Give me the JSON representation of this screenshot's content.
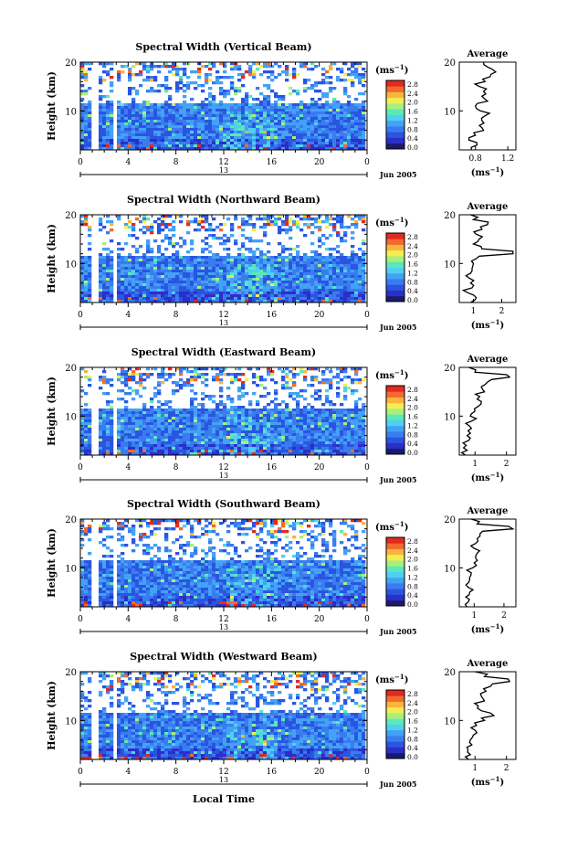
{
  "figure": {
    "xlabel": "Local Time",
    "xticks": [
      "0",
      "4",
      "8",
      "12",
      "16",
      "20",
      "0"
    ],
    "day_label": "13",
    "month_label": "Jun 2005",
    "ylabel": "Height (km)",
    "yticks": [
      "20",
      "10"
    ],
    "colorbar_unit": "(ms",
    "colorbar_exp": "−1",
    "colorbar_ticks": [
      "2.8",
      "2.4",
      "2.0",
      "1.6",
      "1.2",
      "0.8",
      "0.4",
      "0.0"
    ],
    "avg_title": "Average",
    "avg_unit": "(ms",
    "avg_exp": "−1",
    "colors": [
      "#1a1a6e",
      "#2c2ec8",
      "#2a55e0",
      "#3a7cf0",
      "#43a2f5",
      "#4fd0f0",
      "#5ce8b8",
      "#a8f07c",
      "#f2ee52",
      "#f8b43c",
      "#f26a2e",
      "#e22a1e"
    ]
  },
  "chart_data": [
    {
      "type": "heatmap",
      "title": "Spectral Width (Vertical Beam)",
      "x_range_hours": [
        0,
        24
      ],
      "y_range_km": [
        2,
        20
      ],
      "color_range": [
        0.0,
        2.8
      ],
      "colorbar_unit": "ms^-1",
      "avg_profile": {
        "xticks": [
          "0.8",
          "1.2"
        ],
        "xlim": [
          0.6,
          1.3
        ],
        "height_km": [
          2,
          3,
          4,
          5,
          6,
          7,
          8,
          9,
          10,
          11,
          12,
          13,
          14,
          15,
          16,
          17,
          18,
          19,
          20
        ],
        "value": [
          0.75,
          0.82,
          0.72,
          0.8,
          0.9,
          0.85,
          0.88,
          0.92,
          0.86,
          0.8,
          0.95,
          0.88,
          0.9,
          0.85,
          0.92,
          0.98,
          1.05,
          0.95,
          0.9
        ]
      }
    },
    {
      "type": "heatmap",
      "title": "Spectral Width (Northward Beam)",
      "x_range_hours": [
        0,
        24
      ],
      "y_range_km": [
        2,
        20
      ],
      "color_range": [
        0.0,
        2.8
      ],
      "colorbar_unit": "ms^-1",
      "avg_profile": {
        "xticks": [
          "1",
          "2"
        ],
        "xlim": [
          0.5,
          2.5
        ],
        "height_km": [
          2,
          3,
          4,
          5,
          6,
          7,
          8,
          9,
          10,
          11,
          12,
          13,
          14,
          15,
          16,
          17,
          18,
          19,
          20
        ],
        "value": [
          0.9,
          1.1,
          0.8,
          0.95,
          0.9,
          0.85,
          0.9,
          0.95,
          1.0,
          1.1,
          2.4,
          1.3,
          1.0,
          1.2,
          1.1,
          1.3,
          1.5,
          1.0,
          0.9
        ]
      }
    },
    {
      "type": "heatmap",
      "title": "Spectral Width (Eastward Beam)",
      "x_range_hours": [
        0,
        24
      ],
      "y_range_km": [
        2,
        20
      ],
      "color_range": [
        0.0,
        2.8
      ],
      "colorbar_unit": "ms^-1",
      "avg_profile": {
        "xticks": [
          "1",
          "2"
        ],
        "xlim": [
          0.5,
          2.3
        ],
        "height_km": [
          2,
          3,
          4,
          5,
          6,
          7,
          8,
          9,
          10,
          11,
          12,
          13,
          14,
          15,
          16,
          17,
          18,
          19,
          20
        ],
        "value": [
          0.7,
          0.75,
          0.72,
          0.8,
          0.75,
          0.78,
          0.82,
          0.9,
          0.85,
          1.0,
          1.1,
          1.2,
          1.15,
          1.3,
          1.2,
          1.4,
          2.1,
          1.0,
          0.8
        ]
      }
    },
    {
      "type": "heatmap",
      "title": "Spectral Width (Southward Beam)",
      "x_range_hours": [
        0,
        24
      ],
      "y_range_km": [
        2,
        20
      ],
      "color_range": [
        0.0,
        2.8
      ],
      "colorbar_unit": "ms^-1",
      "avg_profile": {
        "xticks": [
          "1",
          "2"
        ],
        "xlim": [
          0.5,
          2.4
        ],
        "height_km": [
          2,
          3,
          4,
          5,
          6,
          7,
          8,
          9,
          10,
          11,
          12,
          13,
          14,
          15,
          16,
          17,
          18,
          19,
          20
        ],
        "value": [
          0.75,
          0.8,
          0.72,
          0.85,
          0.8,
          0.82,
          0.85,
          0.9,
          0.95,
          1.0,
          1.05,
          1.1,
          1.0,
          1.05,
          1.1,
          1.2,
          2.3,
          1.1,
          0.9
        ]
      }
    },
    {
      "type": "heatmap",
      "title": "Spectral Width (Westward Beam)",
      "x_range_hours": [
        0,
        24
      ],
      "y_range_km": [
        2,
        20
      ],
      "color_range": [
        0.0,
        2.8
      ],
      "colorbar_unit": "ms^-1",
      "avg_profile": {
        "xticks": [
          "1",
          "2"
        ],
        "xlim": [
          0.5,
          2.3
        ],
        "height_km": [
          2,
          3,
          4,
          5,
          6,
          7,
          8,
          9,
          10,
          11,
          12,
          13,
          14,
          15,
          16,
          17,
          18,
          19,
          20
        ],
        "value": [
          0.8,
          0.85,
          0.78,
          0.9,
          0.85,
          0.95,
          1.0,
          1.05,
          1.3,
          1.6,
          1.2,
          1.1,
          1.3,
          1.2,
          1.35,
          1.5,
          2.1,
          1.3,
          1.0
        ]
      }
    }
  ]
}
